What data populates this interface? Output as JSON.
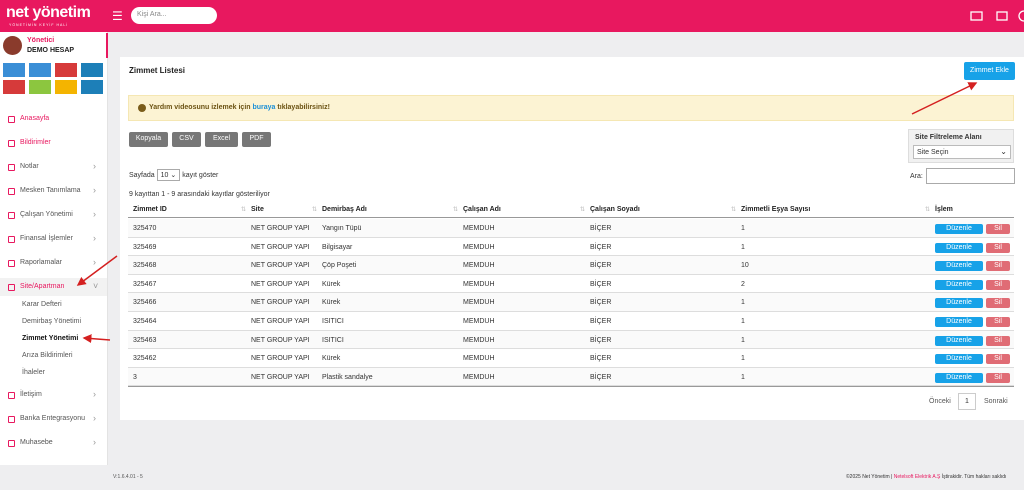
{
  "header": {
    "logo": "net yönetim",
    "logo_tagline": "YÖNETİMİN KEYİF HALİ",
    "search_placeholder": "Kişi Ara..."
  },
  "sidebar": {
    "role": "Yönetici",
    "account": "DEMO HESAP",
    "menu_top": [
      "Anasayfa",
      "Bildirimler",
      "Notlar",
      "Mesken Tanımlama",
      "Çalışan Yönetimi",
      "Finansal İşlemler",
      "Raporlamalar",
      "Site/Apartman"
    ],
    "submenu": [
      "Karar Defteri",
      "Demirbaş Yönetimi",
      "Zimmet Yönetimi",
      "Arıza Bildirimleri",
      "İhaleler"
    ],
    "menu_bottom": [
      "İletişim",
      "Banka Entegrasyonu",
      "Muhasebe"
    ]
  },
  "page": {
    "title": "Zimmet Listesi",
    "add_button": "Zimmet Ekle",
    "alert": {
      "prefix": "Yardım videosunu izlemek için",
      "link": "buraya",
      "suffix": "tıklayabilirsiniz!"
    },
    "export_buttons": [
      "Kopyala",
      "CSV",
      "Excel",
      "PDF"
    ],
    "filter": {
      "label": "Site Filtreleme Alanı",
      "placeholder": "Site Seçin"
    },
    "page_size": {
      "prefix": "Sayfada",
      "value": "10",
      "suffix": "kayıt göster"
    },
    "search_label": "Ara:",
    "info": "9 kayıttan 1 - 9 arasındaki kayıtlar gösteriliyor",
    "table": {
      "columns": [
        "Zimmet ID",
        "Site",
        "Demirbaş Adı",
        "Çalışan Adı",
        "Çalışan Soyadı",
        "Zimmetli Eşya Sayısı",
        "İşlem"
      ],
      "rows": [
        [
          "325470",
          "NET GROUP YAPI",
          "Yangın Tüpü",
          "MEMDUH",
          "BİÇER",
          "1"
        ],
        [
          "325469",
          "NET GROUP YAPI",
          "Bilgisayar",
          "MEMDUH",
          "BİÇER",
          "1"
        ],
        [
          "325468",
          "NET GROUP YAPI",
          "Çöp Poşeti",
          "MEMDUH",
          "BİÇER",
          "10"
        ],
        [
          "325467",
          "NET GROUP YAPI",
          "Kürek",
          "MEMDUH",
          "BİÇER",
          "2"
        ],
        [
          "325466",
          "NET GROUP YAPI",
          "Kürek",
          "MEMDUH",
          "BİÇER",
          "1"
        ],
        [
          "325464",
          "NET GROUP YAPI",
          "ISITICI",
          "MEMDUH",
          "BİÇER",
          "1"
        ],
        [
          "325463",
          "NET GROUP YAPI",
          "ISITICI",
          "MEMDUH",
          "BİÇER",
          "1"
        ],
        [
          "325462",
          "NET GROUP YAPI",
          "Kürek",
          "MEMDUH",
          "BİÇER",
          "1"
        ],
        [
          "3",
          "NET GROUP YAPI",
          "Plastik sandalye",
          "MEMDUH",
          "BİÇER",
          "1"
        ]
      ],
      "edit": "Düzenle",
      "delete": "Sil"
    },
    "pagination": {
      "prev": "Önceki",
      "current": "1",
      "next": "Sonraki"
    }
  },
  "footer": {
    "version": "V:1.6.4.01 - 5",
    "copyright_prefix": "©2025 Net Yönetim |",
    "company": "Netelsoft Elektrik A.Ş",
    "copyright_suffix": "İştirakidir. Tüm hakları saklıdı"
  }
}
